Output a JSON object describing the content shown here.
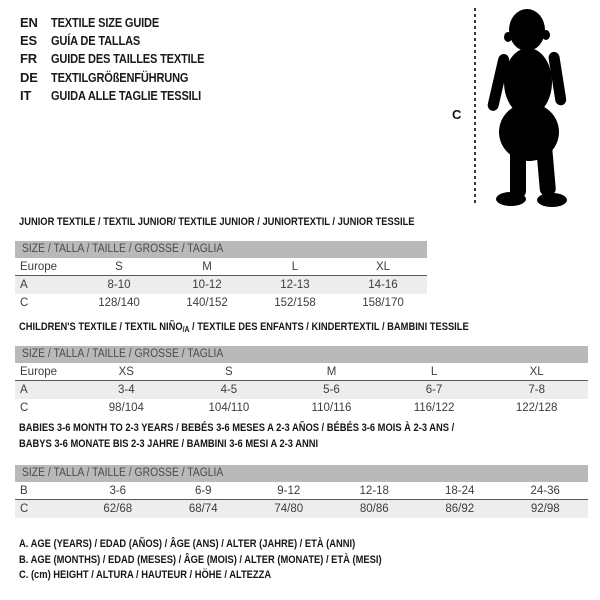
{
  "colors": {
    "background": "#ffffff",
    "size_bar_gray": "#b9b9b9",
    "shaded_row": "#ededed",
    "separator_line": "#57585a",
    "heading_text": "#161616",
    "cell_text": "#3d3d3d",
    "silhouette": "#000000"
  },
  "languages": [
    {
      "code": "EN",
      "title": "TEXTILE SIZE GUIDE"
    },
    {
      "code": "ES",
      "title": "GUÍA DE TALLAS"
    },
    {
      "code": "FR",
      "title": "GUIDE DES TAILLES TEXTILE"
    },
    {
      "code": "DE",
      "title": "TEXTILGRÖßENFÜHRUNG"
    },
    {
      "code": "IT",
      "title": "GUIDA ALLE TAGLIE TESSILI"
    }
  ],
  "figure": {
    "height_label": "C"
  },
  "tables": [
    {
      "heading_pre": "JUNIOR TEXTILE / TEXTIL JUNIOR/ TEXTILE JUNIOR / JUNIORTEXTIL / JUNIOR TESSILE",
      "heading_sub": "",
      "heading_post": "",
      "heading_line2": "",
      "size_bar": "SIZE / TALLA / TAILLE / GRÖSSE / TAGLIA",
      "rows": [
        {
          "label": "Europe",
          "cells": [
            "S",
            "M",
            "L",
            "XL"
          ]
        },
        {
          "label": "A",
          "cells": [
            "8-10",
            "10-12",
            "12-13",
            "14-16"
          ]
        },
        {
          "label": "C",
          "cells": [
            "128/140",
            "140/152",
            "152/158",
            "158/170"
          ]
        }
      ]
    },
    {
      "heading_pre": "CHILDREN'S TEXTILE / TEXTIL NIÑO",
      "heading_sub": "/A",
      "heading_post": " / TEXTILE DES ENFANTS / KINDERTEXTIL / BAMBINI TESSILE",
      "heading_line2": "",
      "size_bar": "SIZE / TALLA / TAILLE / GRÖSSE / TAGLIA",
      "rows": [
        {
          "label": "Europe",
          "cells": [
            "XS",
            "S",
            "M",
            "L",
            "XL"
          ]
        },
        {
          "label": "A",
          "cells": [
            "3-4",
            "4-5",
            "5-6",
            "6-7",
            "7-8"
          ]
        },
        {
          "label": "C",
          "cells": [
            "98/104",
            "104/110",
            "110/116",
            "116/122",
            "122/128"
          ]
        }
      ]
    },
    {
      "heading_pre": "BABIES 3-6 MONTH TO 2-3 YEARS / BEBÉS 3-6 MESES A 2-3 AÑOS / BÉBÉS 3-6 MOIS À 2-3 ANS /",
      "heading_sub": "",
      "heading_post": "",
      "heading_line2": "BABYS 3-6 MONATE BIS 2-3 JAHRE / BAMBINI 3-6 MESI A 2-3 ANNI",
      "size_bar": "SIZE / TALLA / TAILLE / GRÖSSE / TAGLIA",
      "rows": [
        {
          "label": "B",
          "cells": [
            "3-6",
            "6-9",
            "9-12",
            "12-18",
            "18-24",
            "24-36"
          ]
        },
        {
          "label": "C",
          "cells": [
            "62/68",
            "68/74",
            "74/80",
            "80/86",
            "86/92",
            "92/98"
          ]
        }
      ]
    }
  ],
  "footnotes": [
    "A. AGE (YEARS) / EDAD (AÑOS) / ÂGE (ANS) / ALTER (JAHRE) / ETÀ (ANNI)",
    "B. AGE (MONTHS) / EDAD (MESES) / ÂGE (MOIS) / ALTER (MONATE) / ETÀ (MESI)",
    "C. (cm) HEIGHT / ALTURA / HAUTEUR / HÖHE / ALTEZZA"
  ]
}
